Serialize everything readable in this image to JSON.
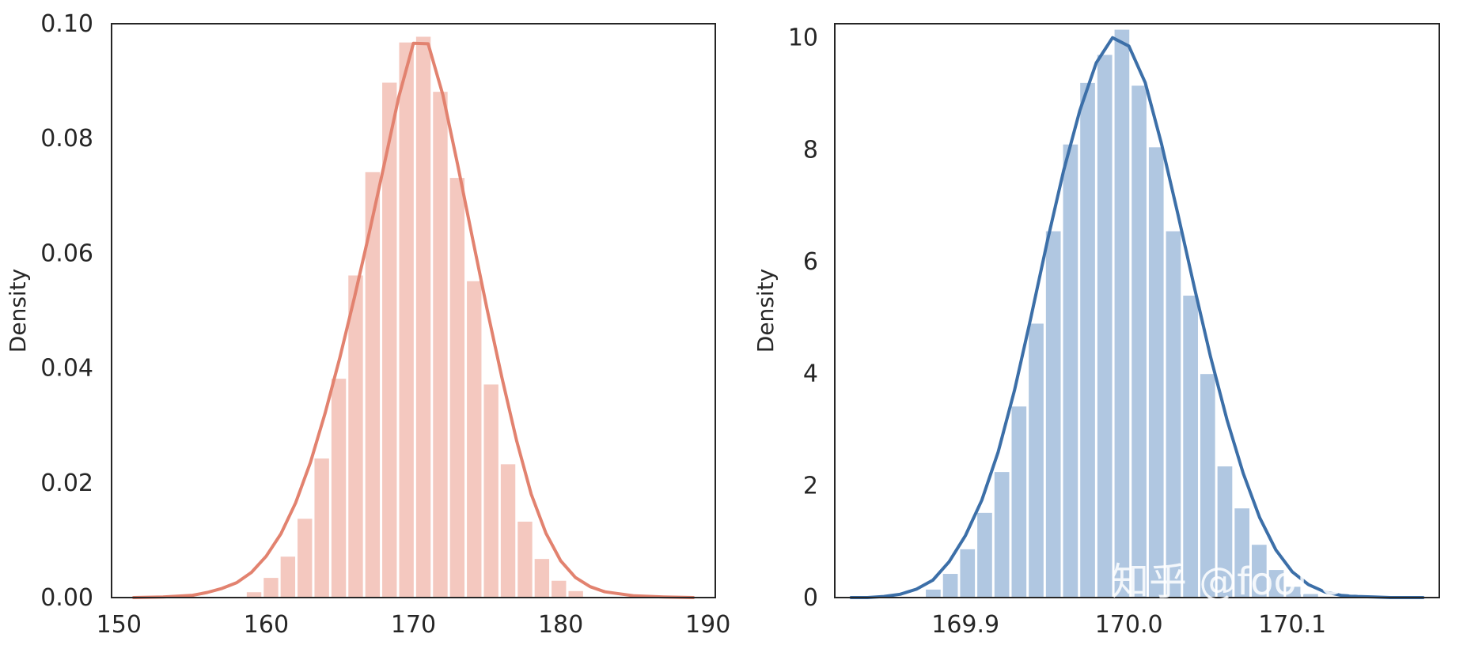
{
  "chart_data": [
    {
      "type": "histogram",
      "ylabel": "Density",
      "xlabel": "",
      "xlim": [
        149.5,
        190.5
      ],
      "ylim": [
        0,
        0.1
      ],
      "xticks": [
        150,
        160,
        170,
        180,
        190
      ],
      "xtick_labels": [
        "150",
        "160",
        "170",
        "180",
        "190"
      ],
      "yticks": [
        0.0,
        0.02,
        0.04,
        0.06,
        0.08,
        0.1
      ],
      "ytick_labels": [
        "0.00",
        "0.02",
        "0.04",
        "0.06",
        "0.08",
        "0.10"
      ],
      "bar_color": "#f4c8bf",
      "line_color": "#e2826f",
      "bin_width": 1.15,
      "bins": [
        {
          "x": 158.6,
          "density": 0.001
        },
        {
          "x": 159.75,
          "density": 0.0035
        },
        {
          "x": 160.9,
          "density": 0.0072
        },
        {
          "x": 162.05,
          "density": 0.0138
        },
        {
          "x": 163.2,
          "density": 0.0243
        },
        {
          "x": 164.35,
          "density": 0.0382
        },
        {
          "x": 165.5,
          "density": 0.0562
        },
        {
          "x": 166.65,
          "density": 0.0742
        },
        {
          "x": 167.8,
          "density": 0.0898
        },
        {
          "x": 168.95,
          "density": 0.0968
        },
        {
          "x": 170.1,
          "density": 0.0978
        },
        {
          "x": 171.25,
          "density": 0.0882
        },
        {
          "x": 172.4,
          "density": 0.0732
        },
        {
          "x": 173.55,
          "density": 0.0552
        },
        {
          "x": 174.7,
          "density": 0.0372
        },
        {
          "x": 175.85,
          "density": 0.0233
        },
        {
          "x": 177.0,
          "density": 0.0133
        },
        {
          "x": 178.15,
          "density": 0.0068
        },
        {
          "x": 179.3,
          "density": 0.003
        },
        {
          "x": 180.45,
          "density": 0.0012
        }
      ],
      "kde": {
        "x": [
          151,
          153,
          155,
          156,
          157,
          158,
          159,
          160,
          161,
          162,
          163,
          164,
          165,
          166,
          167,
          168,
          169,
          170,
          171,
          172,
          173,
          174,
          175,
          176,
          177,
          178,
          179,
          180,
          181,
          182,
          183,
          185,
          187,
          189
        ],
        "y": [
          0.0,
          0.0001,
          0.0004,
          0.0009,
          0.0016,
          0.0026,
          0.0044,
          0.0072,
          0.0111,
          0.0165,
          0.0235,
          0.0321,
          0.0418,
          0.0524,
          0.0636,
          0.0753,
          0.0872,
          0.0966,
          0.0965,
          0.0876,
          0.0755,
          0.0628,
          0.0503,
          0.0384,
          0.0274,
          0.018,
          0.0112,
          0.0064,
          0.0035,
          0.0019,
          0.001,
          0.0003,
          0.0001,
          0.0
        ]
      }
    },
    {
      "type": "histogram",
      "ylabel": "Density",
      "xlabel": "",
      "xlim": [
        169.82,
        170.19
      ],
      "ylim": [
        0,
        10.25
      ],
      "xticks": [
        169.9,
        170.0,
        170.1
      ],
      "xtick_labels": [
        "169.9",
        "170.0",
        "170.1"
      ],
      "yticks": [
        0,
        2,
        4,
        6,
        8,
        10
      ],
      "ytick_labels": [
        "0",
        "2",
        "4",
        "6",
        "8",
        "10"
      ],
      "bar_color": "#b0c7e1",
      "line_color": "#3c6fa8",
      "bin_width": 0.0105,
      "bins": [
        {
          "x": 169.875,
          "density": 0.15
        },
        {
          "x": 169.8855,
          "density": 0.43
        },
        {
          "x": 169.896,
          "density": 0.87
        },
        {
          "x": 169.9065,
          "density": 1.52
        },
        {
          "x": 169.917,
          "density": 2.25
        },
        {
          "x": 169.9275,
          "density": 3.42
        },
        {
          "x": 169.938,
          "density": 4.9
        },
        {
          "x": 169.9485,
          "density": 6.55
        },
        {
          "x": 169.959,
          "density": 8.1
        },
        {
          "x": 169.9695,
          "density": 9.2
        },
        {
          "x": 169.98,
          "density": 9.7
        },
        {
          "x": 169.9905,
          "density": 10.15
        },
        {
          "x": 170.001,
          "density": 9.15
        },
        {
          "x": 170.0115,
          "density": 8.05
        },
        {
          "x": 170.022,
          "density": 6.55
        },
        {
          "x": 170.0325,
          "density": 5.4
        },
        {
          "x": 170.043,
          "density": 4.0
        },
        {
          "x": 170.0535,
          "density": 2.35
        },
        {
          "x": 170.064,
          "density": 1.6
        },
        {
          "x": 170.0745,
          "density": 0.95
        },
        {
          "x": 170.085,
          "density": 0.5
        },
        {
          "x": 170.0955,
          "density": 0.2
        },
        {
          "x": 170.106,
          "density": 0.07
        }
      ],
      "kde": {
        "x": [
          169.83,
          169.84,
          169.85,
          169.86,
          169.87,
          169.88,
          169.89,
          169.9,
          169.91,
          169.92,
          169.93,
          169.94,
          169.95,
          169.96,
          169.97,
          169.98,
          169.99,
          170.0,
          170.01,
          170.02,
          170.03,
          170.04,
          170.05,
          170.06,
          170.07,
          170.08,
          170.09,
          170.1,
          170.11,
          170.12,
          170.13,
          170.14,
          170.15,
          170.16,
          170.17,
          170.18
        ],
        "y": [
          0.0,
          0.0,
          0.02,
          0.06,
          0.15,
          0.31,
          0.64,
          1.11,
          1.74,
          2.6,
          3.7,
          5.0,
          6.35,
          7.62,
          8.7,
          9.55,
          10.0,
          9.85,
          9.2,
          8.1,
          6.85,
          5.55,
          4.3,
          3.18,
          2.22,
          1.43,
          0.85,
          0.46,
          0.23,
          0.1,
          0.04,
          0.02,
          0.01,
          0.0,
          0.0,
          0.0
        ]
      }
    }
  ],
  "watermark": "知乎 @fool cool"
}
